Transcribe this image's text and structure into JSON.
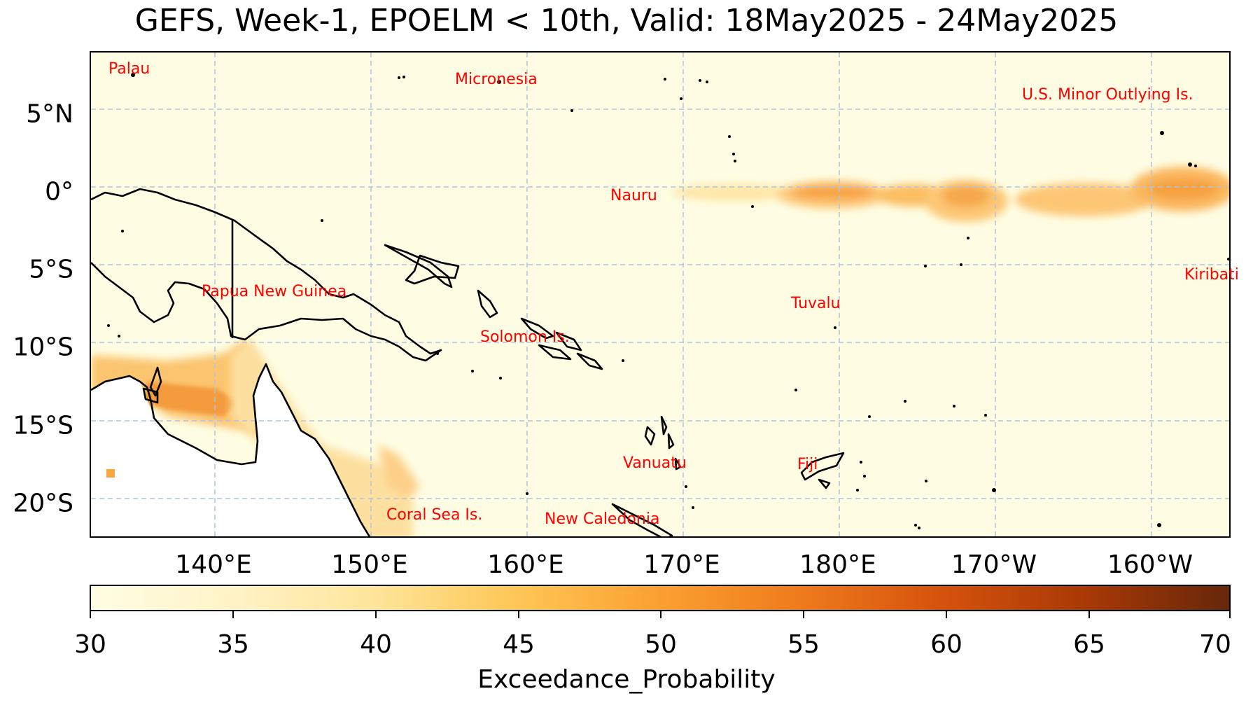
{
  "title": "GEFS, Week-1, EPOELM < 10th, Valid: 18May2025 - 24May2025",
  "map": {
    "lat_labels": [
      "5°N",
      "0°",
      "5°S",
      "10°S",
      "15°S",
      "20°S"
    ],
    "lon_labels": [
      "140°E",
      "150°E",
      "160°E",
      "170°E",
      "180°E",
      "170°W",
      "160°W"
    ],
    "extent": {
      "lon_min": 131.5,
      "lon_max": 204.5,
      "lat_min": -22.3,
      "lat_max": 9
    },
    "places": [
      {
        "name": "Palau"
      },
      {
        "name": "Micronesia"
      },
      {
        "name": "U.S. Minor Outlying Is."
      },
      {
        "name": "Nauru"
      },
      {
        "name": "Kiribati"
      },
      {
        "name": "Papua New Guinea"
      },
      {
        "name": "Tuvalu"
      },
      {
        "name": "Solomon Is."
      },
      {
        "name": "Vanuatu"
      },
      {
        "name": "Fiji"
      },
      {
        "name": "Coral Sea Is."
      },
      {
        "name": "New Caledonia"
      }
    ],
    "colors": {
      "background": "#fefde3",
      "coast": "#000000",
      "label": "#ff0000",
      "grid": "#b0c4de"
    }
  },
  "colorbar": {
    "label": "Exceedance_Probability",
    "ticks": [
      "30",
      "35",
      "40",
      "45",
      "50",
      "55",
      "60",
      "65",
      "70"
    ],
    "min": 30,
    "max": 70,
    "colormap": "YlOrBr"
  }
}
